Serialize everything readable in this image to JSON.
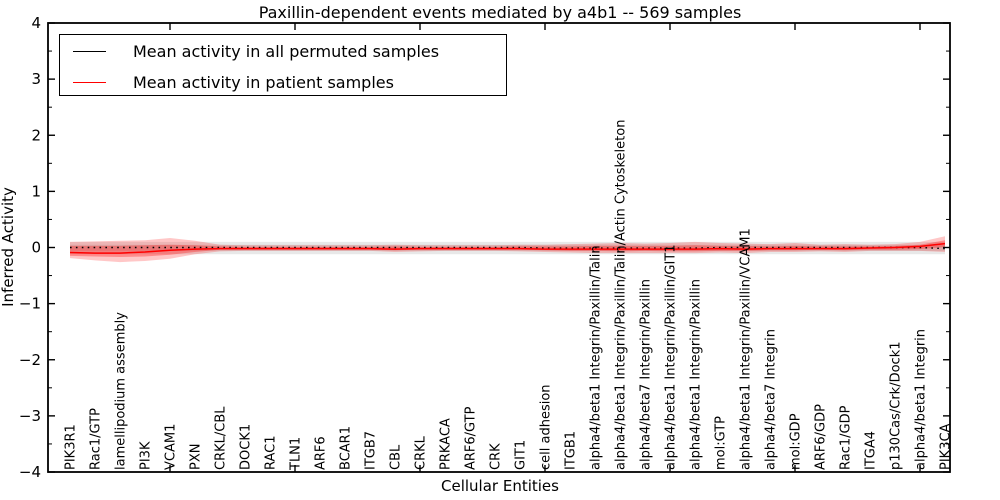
{
  "figure": {
    "title": "Paxillin-dependent events mediated by a4b1 -- 569 samples",
    "xlabel": "Cellular Entities",
    "ylabel": "Inferred Activity"
  },
  "legend": {
    "items": [
      {
        "label": "Mean activity in all permuted samples",
        "color": "#000000"
      },
      {
        "label": "Mean activity in patient samples",
        "color": "#ff0000"
      }
    ]
  },
  "chart_data": {
    "type": "line",
    "title": "Paxillin-dependent events mediated by a4b1 -- 569 samples",
    "xlabel": "Cellular Entities",
    "ylabel": "Inferred Activity",
    "ylim": [
      -4,
      4
    ],
    "ytick_values": [
      4,
      3,
      2,
      1,
      0,
      -1,
      -2,
      -3,
      -4
    ],
    "ytick_labels": [
      "4",
      "3",
      "2",
      "1",
      "0",
      "−1",
      "−2",
      "−3",
      "−4"
    ],
    "ytick_minor_step": 0.5,
    "xtick_major_values": [
      5,
      10,
      15,
      20,
      25,
      30,
      35
    ],
    "grid": false,
    "legend_position": "upper left",
    "categories": [
      "PIK3R1",
      "Rac1/GTP",
      "lamellipodium assembly",
      "PI3K",
      "VCAM1",
      "PXN",
      "CRKL/CBL",
      "DOCK1",
      "RAC1",
      "TLN1",
      "ARF6",
      "BCAR1",
      "ITGB7",
      "CBL",
      "CRKL",
      "PRKACA",
      "ARF6/GTP",
      "CRK",
      "GIT1",
      "cell adhesion",
      "ITGB1",
      "alpha4/beta1 Integrin/Paxillin/Talin",
      "alpha4/beta1 Integrin/Paxillin/Talin/Actin Cytoskeleton",
      "alpha4/beta7 Integrin/Paxillin",
      "alpha4/beta1 Integrin/Paxillin/GIT1",
      "alpha4/beta1 Integrin/Paxillin",
      "mol:GTP",
      "alpha4/beta1 Integrin/Paxillin/VCAM1",
      "alpha4/beta7 Integrin",
      "mol:GDP",
      "ARF6/GDP",
      "Rac1/GDP",
      "ITGA4",
      "p130Cas/Crk/Dock1",
      "alpha4/beta1 Integrin",
      "PIK3CA"
    ],
    "series": [
      {
        "name": "Mean activity in all permuted samples",
        "color": "#000000",
        "style": "dotted",
        "values": [
          0,
          0,
          0,
          0,
          0,
          0,
          0,
          0,
          0,
          0,
          0,
          0,
          0,
          0,
          0,
          0,
          0,
          0,
          0,
          -0.01,
          -0.01,
          -0.01,
          -0.01,
          -0.01,
          -0.01,
          -0.01,
          0,
          0,
          0,
          0,
          0,
          0,
          0,
          0,
          0,
          -0.02
        ]
      },
      {
        "name": "Mean activity in patient samples",
        "color": "#ff0000",
        "style": "solid",
        "values": [
          -0.09,
          -0.1,
          -0.1,
          -0.08,
          -0.05,
          -0.03,
          -0.02,
          -0.02,
          -0.02,
          -0.02,
          -0.02,
          -0.02,
          -0.02,
          -0.03,
          -0.02,
          -0.02,
          -0.02,
          -0.02,
          -0.02,
          -0.03,
          -0.03,
          -0.03,
          -0.03,
          -0.03,
          -0.03,
          -0.03,
          -0.02,
          -0.03,
          -0.02,
          -0.02,
          -0.02,
          -0.02,
          -0.01,
          0.0,
          0.02,
          0.07
        ]
      }
    ],
    "bands": [
      {
        "name": "permuted-std-outer",
        "color": "rgba(0,0,0,0.09)",
        "upper": 0.1,
        "lower": -0.12
      },
      {
        "name": "permuted-std-inner",
        "color": "rgba(0,0,0,0.08)",
        "upper": 0.05,
        "lower": -0.06
      },
      {
        "name": "patient-std-outer",
        "color": "rgba(255,0,0,0.22)",
        "upper": [
          0.1,
          0.11,
          0.12,
          0.13,
          0.17,
          0.12,
          0.05,
          0.04,
          0.04,
          0.04,
          0.04,
          0.04,
          0.04,
          0.05,
          0.04,
          0.04,
          0.04,
          0.04,
          0.05,
          0.05,
          0.06,
          0.07,
          0.08,
          0.07,
          0.08,
          0.1,
          0.08,
          0.07,
          0.06,
          0.08,
          0.05,
          0.06,
          0.05,
          0.06,
          0.1,
          0.2
        ],
        "lower": [
          -0.19,
          -0.23,
          -0.26,
          -0.24,
          -0.2,
          -0.12,
          -0.07,
          -0.06,
          -0.06,
          -0.06,
          -0.06,
          -0.06,
          -0.06,
          -0.08,
          -0.07,
          -0.06,
          -0.06,
          -0.06,
          -0.07,
          -0.08,
          -0.09,
          -0.1,
          -0.1,
          -0.1,
          -0.1,
          -0.1,
          -0.09,
          -0.1,
          -0.08,
          -0.08,
          -0.07,
          -0.08,
          -0.06,
          -0.06,
          -0.06,
          -0.08
        ]
      },
      {
        "name": "patient-std-inner",
        "color": "rgba(255,0,0,0.30)",
        "upper": [
          0.03,
          0.03,
          0.03,
          0.04,
          0.05,
          0.04,
          0.02,
          0.01,
          0.01,
          0.01,
          0.01,
          0.01,
          0.01,
          0.02,
          0.01,
          0.01,
          0.01,
          0.01,
          0.02,
          0.02,
          0.02,
          0.03,
          0.03,
          0.03,
          0.03,
          0.04,
          0.03,
          0.03,
          0.02,
          0.03,
          0.02,
          0.02,
          0.02,
          0.03,
          0.05,
          0.13
        ],
        "lower": [
          -0.15,
          -0.16,
          -0.17,
          -0.16,
          -0.13,
          -0.08,
          -0.04,
          -0.04,
          -0.04,
          -0.04,
          -0.04,
          -0.04,
          -0.04,
          -0.05,
          -0.04,
          -0.04,
          -0.04,
          -0.04,
          -0.04,
          -0.05,
          -0.06,
          -0.06,
          -0.07,
          -0.06,
          -0.07,
          -0.07,
          -0.06,
          -0.06,
          -0.05,
          -0.05,
          -0.04,
          -0.05,
          -0.04,
          -0.04,
          -0.03,
          0.01
        ]
      }
    ]
  }
}
